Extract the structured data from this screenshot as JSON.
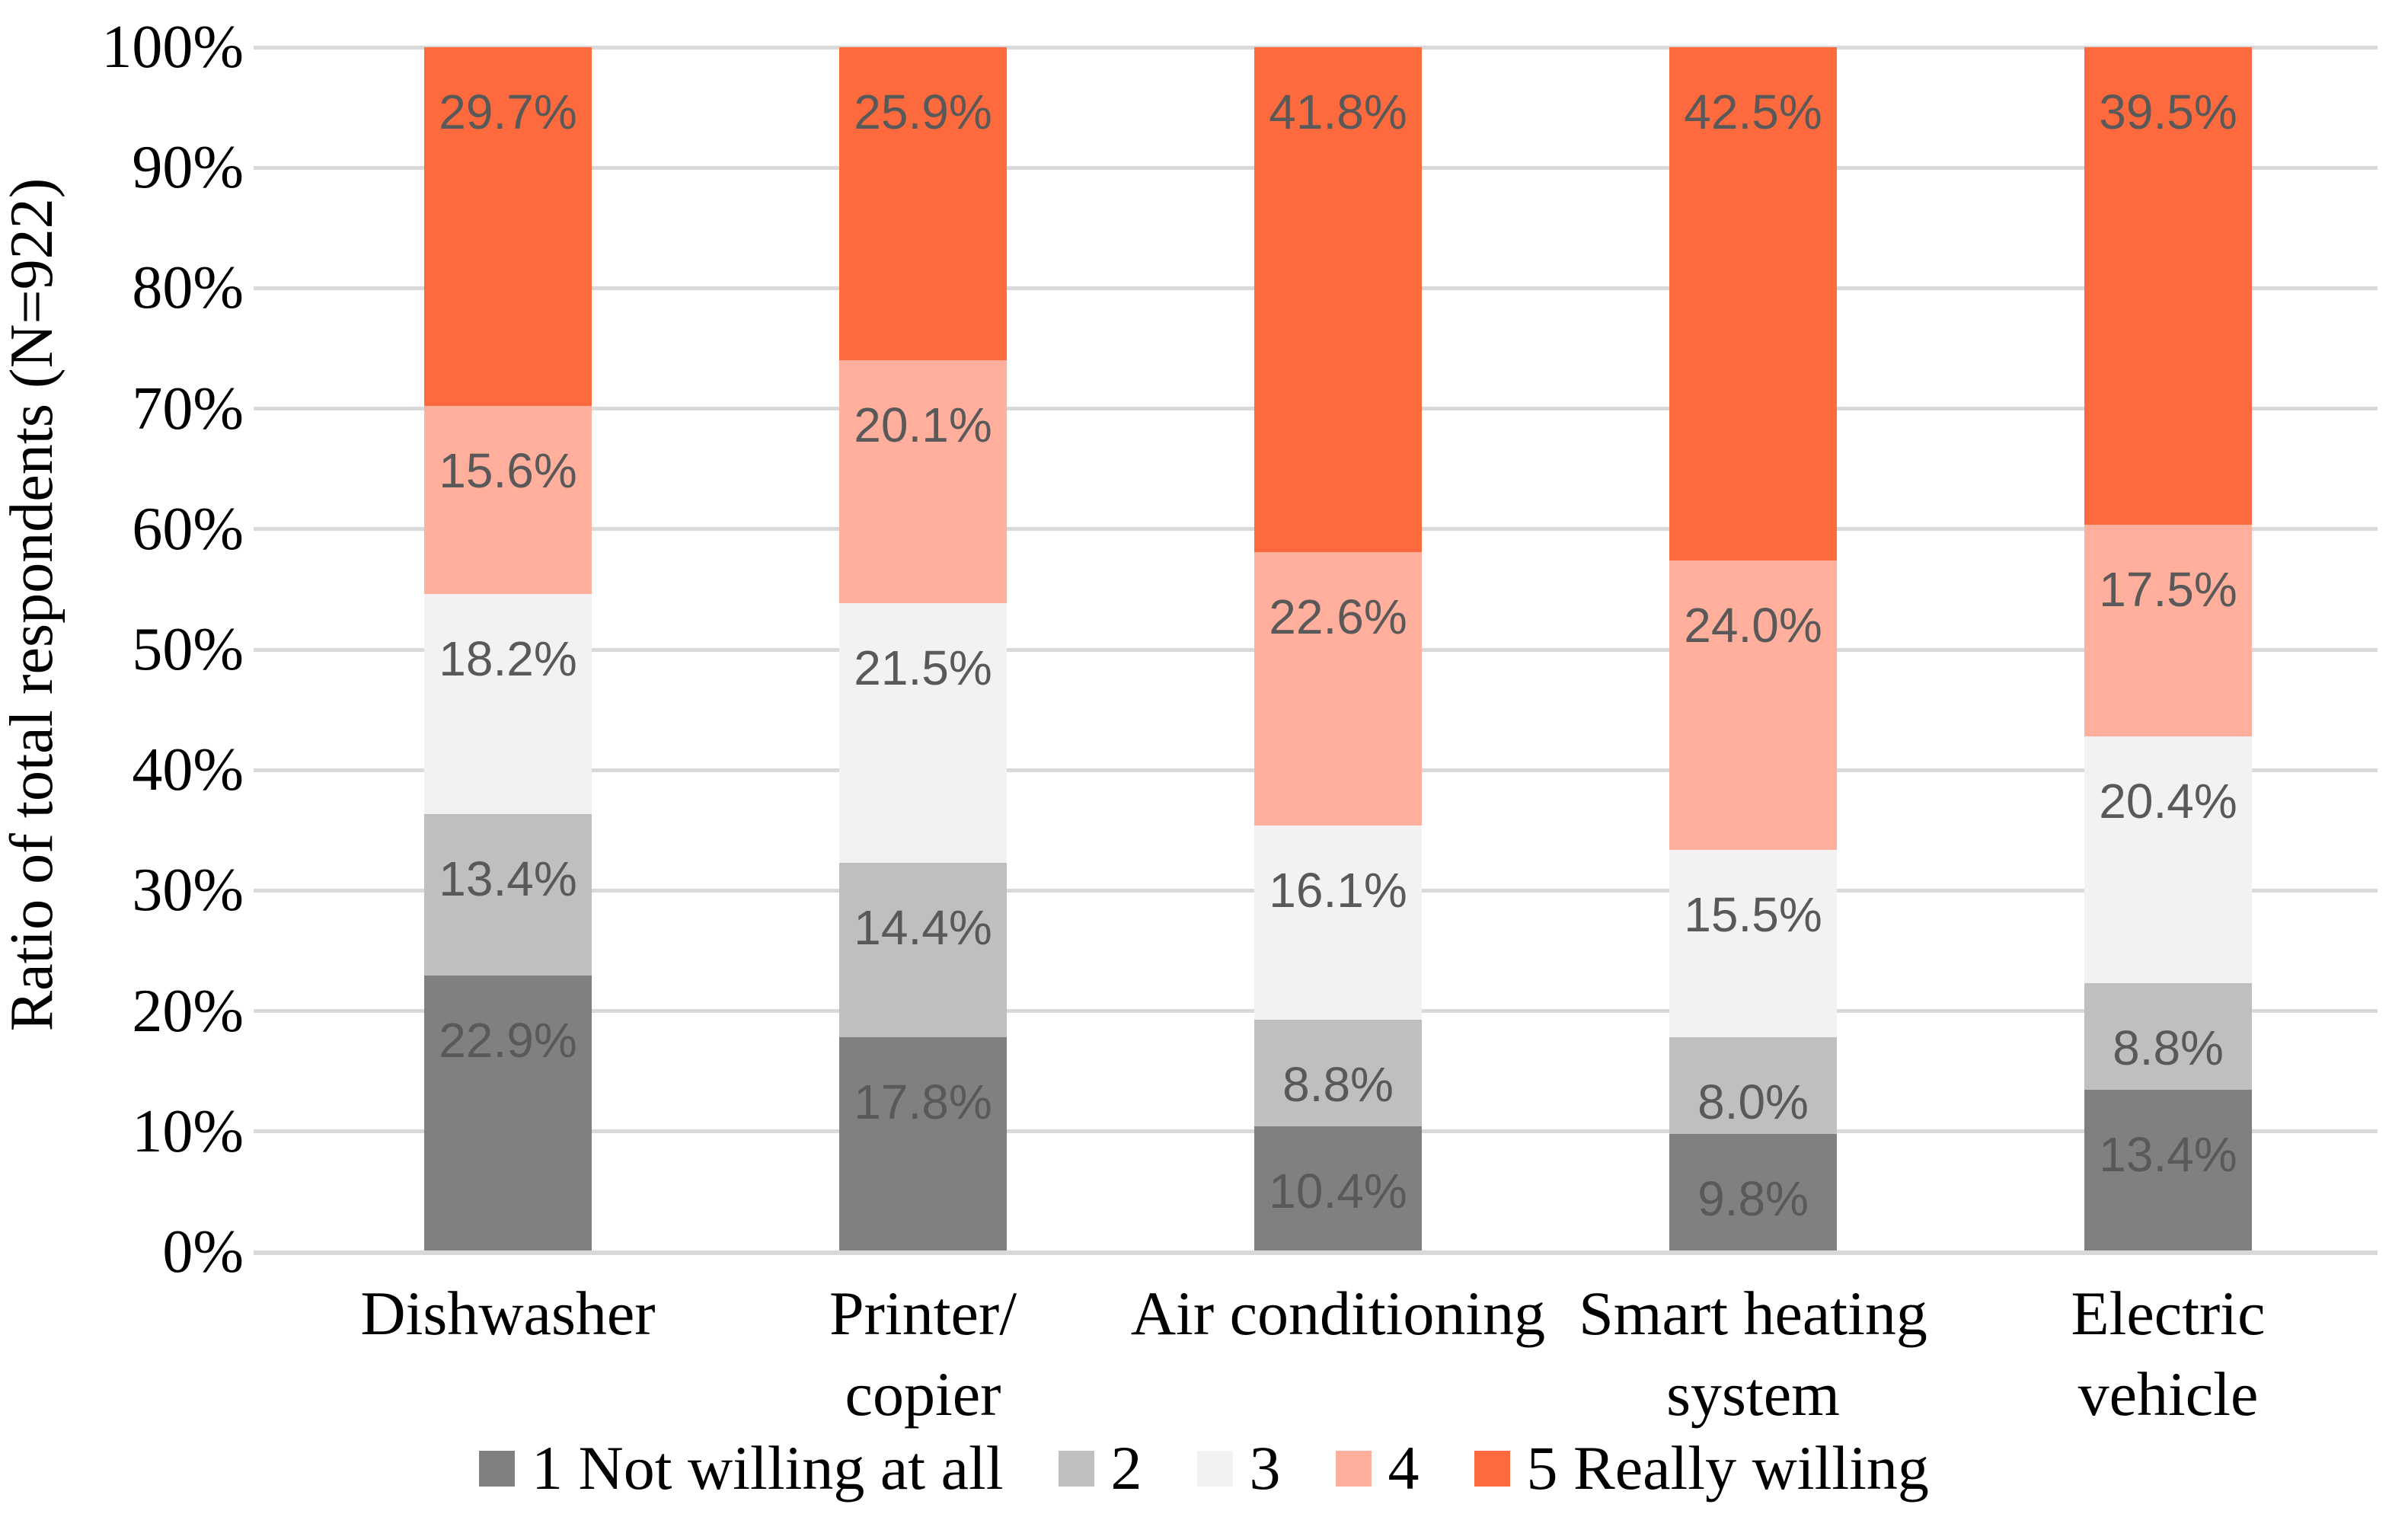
{
  "chart_data": {
    "type": "bar",
    "stacking": "percent-100",
    "title": "",
    "xlabel": "",
    "ylabel": "Ratio of total respondents (N=922)",
    "categories": [
      "Dishwasher",
      "Printer/\ncopier",
      "Air conditioning",
      "Smart heating\nsystem",
      "Electric\nvehicle"
    ],
    "series": [
      {
        "name": "1 Not willing at all",
        "color": "#808080",
        "values": [
          22.9,
          17.8,
          10.4,
          9.8,
          13.4
        ]
      },
      {
        "name": "2",
        "color": "#BFBFBF",
        "values": [
          13.4,
          14.4,
          8.8,
          8.0,
          8.8
        ]
      },
      {
        "name": "3",
        "color": "#F2F2F2",
        "values": [
          18.2,
          21.5,
          16.1,
          15.5,
          20.4
        ]
      },
      {
        "name": "4",
        "color": "#FFAF9B",
        "values": [
          15.6,
          20.1,
          22.6,
          24.0,
          17.5
        ]
      },
      {
        "name": "5 Really willing",
        "color": "#FC6A3D",
        "values": [
          29.7,
          25.9,
          41.8,
          42.5,
          39.5
        ]
      }
    ],
    "data_label_suffix": "%",
    "data_label_decimals": 1,
    "y_ticks": [
      "0%",
      "10%",
      "20%",
      "30%",
      "40%",
      "50%",
      "60%",
      "70%",
      "80%",
      "90%",
      "100%"
    ],
    "ylim": [
      0,
      100
    ],
    "grid": true,
    "legend_position": "bottom",
    "colors": {
      "gridline": "#D9D9D9",
      "axis_line": "#D9D9D9",
      "data_label": "#595959",
      "axis_text": "#000000",
      "background": "#FFFFFF"
    }
  }
}
